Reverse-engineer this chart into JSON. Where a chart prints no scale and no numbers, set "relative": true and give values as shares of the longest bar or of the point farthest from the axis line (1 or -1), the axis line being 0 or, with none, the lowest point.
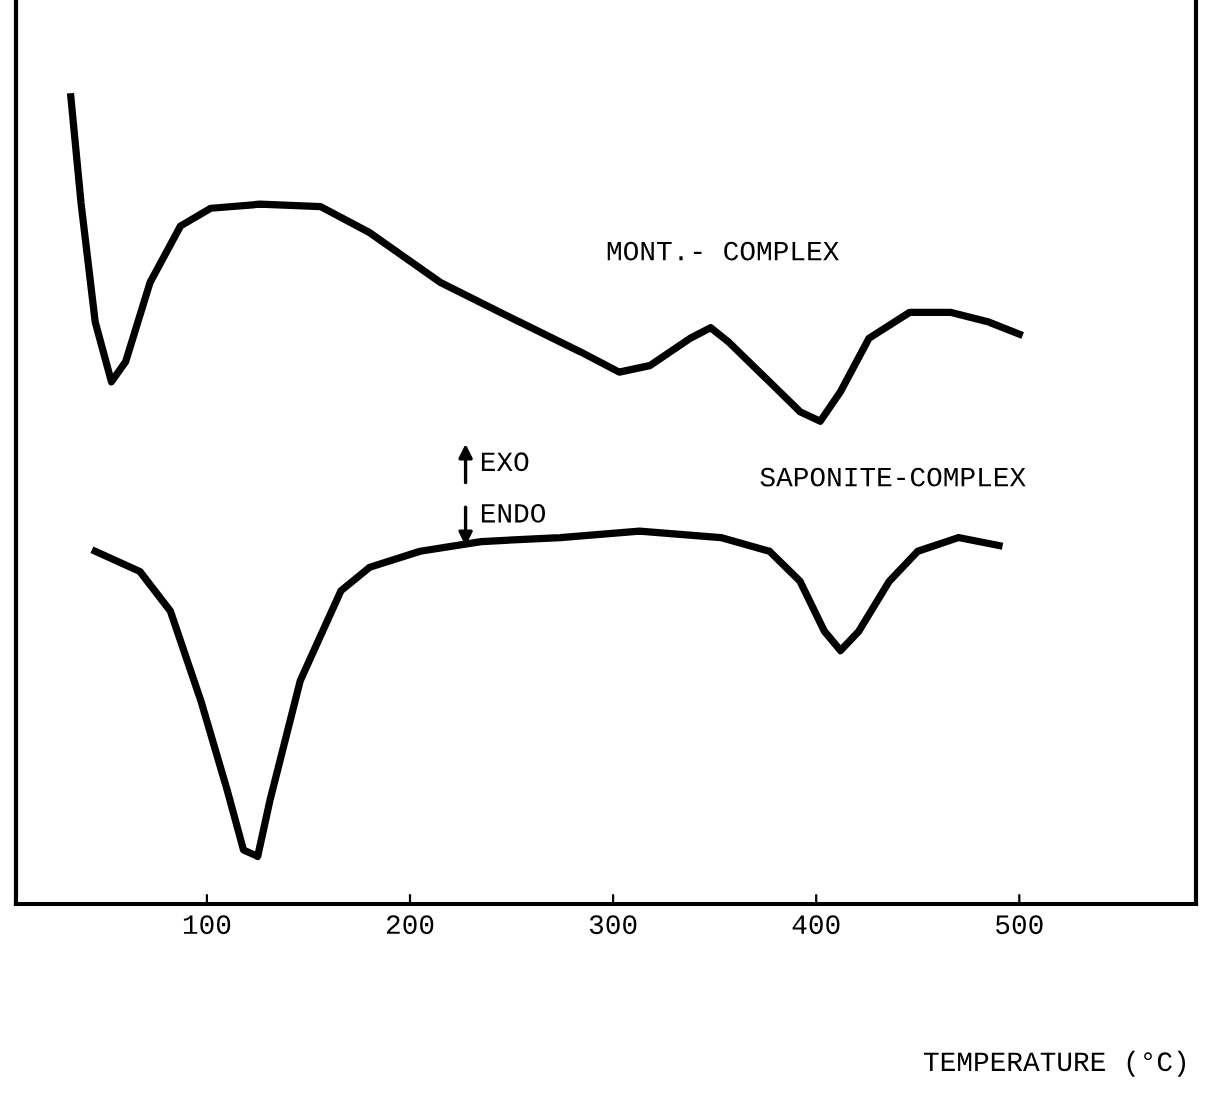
{
  "chart_data": {
    "type": "line",
    "relative": true,
    "xlabel": "TEMPERATURE (°C)",
    "xlim": [
      6,
      587
    ],
    "xticks": [
      100,
      200,
      300,
      400,
      500
    ],
    "grid": false,
    "legend": false,
    "marker": "none",
    "line_style": "solid",
    "annotations": [
      "EXO",
      "ENDO"
    ],
    "series": [
      {
        "name": "MONT.- COMPLEX",
        "color": "#000000",
        "x": [
          33,
          38,
          45,
          53,
          60,
          72,
          87,
          102,
          126,
          156,
          180,
          215,
          254,
          284,
          303,
          318,
          338,
          348,
          357,
          377,
          392,
          402,
          412,
          426,
          446,
          466,
          485,
          500
        ],
        "values": [
          1.0,
          0.869,
          0.721,
          0.647,
          0.672,
          0.77,
          0.84,
          0.862,
          0.867,
          0.864,
          0.832,
          0.77,
          0.721,
          0.684,
          0.659,
          0.667,
          0.701,
          0.714,
          0.696,
          0.647,
          0.61,
          0.598,
          0.635,
          0.701,
          0.733,
          0.733,
          0.721,
          0.706
        ]
      },
      {
        "name": "SAPONITE-COMPLEX",
        "color": "#000000",
        "x": [
          45,
          67,
          82,
          97,
          110,
          118,
          125,
          131,
          146,
          166,
          180,
          205,
          235,
          274,
          313,
          353,
          377,
          392,
          404,
          412,
          421,
          436,
          450,
          470,
          490
        ],
        "values": [
          0.437,
          0.412,
          0.363,
          0.252,
          0.141,
          0.067,
          0.059,
          0.128,
          0.277,
          0.388,
          0.417,
          0.437,
          0.449,
          0.454,
          0.462,
          0.454,
          0.437,
          0.4,
          0.338,
          0.314,
          0.338,
          0.4,
          0.437,
          0.454,
          0.444
        ]
      }
    ]
  }
}
